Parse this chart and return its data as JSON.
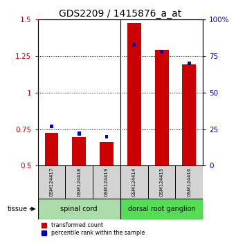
{
  "title": "GDS2209 / 1415876_a_at",
  "samples": [
    "GSM124417",
    "GSM124418",
    "GSM124419",
    "GSM124414",
    "GSM124415",
    "GSM124416"
  ],
  "red_values": [
    0.725,
    0.695,
    0.665,
    1.48,
    1.295,
    1.195
  ],
  "blue_pct": [
    27,
    22,
    20,
    83,
    78,
    70
  ],
  "ylim_left": [
    0.5,
    1.5
  ],
  "ylim_right": [
    0,
    100
  ],
  "yticks_left": [
    0.5,
    0.75,
    1.0,
    1.25,
    1.5
  ],
  "ytick_labels_left": [
    "0.5",
    "0.75",
    "1",
    "1.25",
    "1.5"
  ],
  "yticks_right": [
    0,
    25,
    50,
    75,
    100
  ],
  "ytick_labels_right": [
    "0",
    "25",
    "50",
    "75",
    "100%"
  ],
  "groups": [
    {
      "label": "spinal cord",
      "color": "#88ee88"
    },
    {
      "label": "dorsal root ganglion",
      "color": "#33cc33"
    }
  ],
  "bar_bottom": 0.5,
  "red_color": "#cc0000",
  "blue_color": "#0000bb",
  "tissue_label": "tissue",
  "legend_red": "transformed count",
  "legend_blue": "percentile rank within the sample",
  "title_fontsize": 10,
  "tick_fontsize": 7.5,
  "label_fontsize": 6,
  "red_bar_width": 0.5,
  "blue_bar_width": 0.12,
  "group_colors": [
    "#aaddaa",
    "#55dd55"
  ]
}
